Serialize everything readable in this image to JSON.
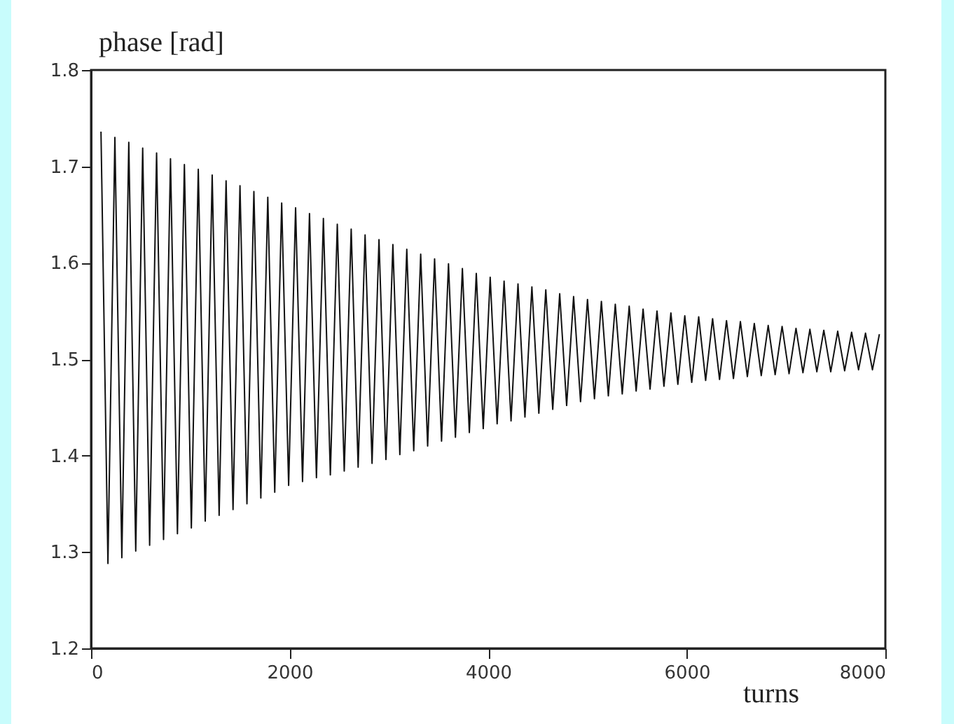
{
  "chart_data": {
    "type": "line",
    "xlabel": "turns",
    "ylabel": "phase [rad]",
    "xlim": [
      0,
      8000
    ],
    "ylim": [
      1.2,
      1.8
    ],
    "xticks": [
      0,
      2000,
      4000,
      6000,
      8000
    ],
    "yticks": [
      1.2,
      1.3,
      1.4,
      1.5,
      1.6,
      1.7,
      1.8
    ],
    "line_style": "solid",
    "x": [
      100,
      170,
      240,
      310,
      380,
      450,
      520,
      590,
      660,
      730,
      800,
      870,
      940,
      1010,
      1080,
      1150,
      1220,
      1290,
      1360,
      1430,
      1500,
      1570,
      1640,
      1710,
      1780,
      1850,
      1920,
      1990,
      2060,
      2130,
      2200,
      2270,
      2340,
      2410,
      2480,
      2550,
      2620,
      2690,
      2760,
      2830,
      2900,
      2970,
      3040,
      3110,
      3180,
      3250,
      3320,
      3390,
      3460,
      3530,
      3600,
      3670,
      3740,
      3810,
      3880,
      3950,
      4020,
      4090,
      4160,
      4230,
      4300,
      4370,
      4440,
      4510,
      4580,
      4650,
      4720,
      4790,
      4860,
      4930,
      5000,
      5070,
      5140,
      5210,
      5280,
      5350,
      5420,
      5490,
      5560,
      5630,
      5700,
      5770,
      5840,
      5910,
      5980,
      6050,
      6120,
      6190,
      6260,
      6330,
      6400,
      6470,
      6540,
      6610,
      6680,
      6750,
      6820,
      6890,
      6960,
      7030,
      7100,
      7170,
      7240,
      7310,
      7380,
      7450,
      7520,
      7590,
      7660,
      7730,
      7800,
      7870,
      7940
    ],
    "series": [
      {
        "color": "#111111",
        "values": [
          1.736,
          1.288,
          1.73,
          1.294,
          1.725,
          1.301,
          1.719,
          1.307,
          1.714,
          1.313,
          1.708,
          1.319,
          1.702,
          1.325,
          1.697,
          1.332,
          1.691,
          1.338,
          1.685,
          1.344,
          1.68,
          1.35,
          1.674,
          1.356,
          1.668,
          1.362,
          1.662,
          1.369,
          1.657,
          1.373,
          1.651,
          1.377,
          1.646,
          1.38,
          1.64,
          1.384,
          1.635,
          1.388,
          1.629,
          1.392,
          1.624,
          1.396,
          1.619,
          1.401,
          1.614,
          1.405,
          1.609,
          1.41,
          1.604,
          1.415,
          1.599,
          1.419,
          1.594,
          1.424,
          1.589,
          1.428,
          1.585,
          1.433,
          1.581,
          1.436,
          1.578,
          1.44,
          1.575,
          1.444,
          1.572,
          1.448,
          1.568,
          1.452,
          1.565,
          1.456,
          1.562,
          1.459,
          1.56,
          1.462,
          1.557,
          1.464,
          1.555,
          1.467,
          1.552,
          1.469,
          1.55,
          1.472,
          1.548,
          1.474,
          1.545,
          1.476,
          1.544,
          1.478,
          1.542,
          1.479,
          1.54,
          1.48,
          1.539,
          1.482,
          1.537,
          1.483,
          1.535,
          1.484,
          1.534,
          1.485,
          1.532,
          1.486,
          1.531,
          1.487,
          1.53,
          1.487,
          1.529,
          1.488,
          1.528,
          1.489,
          1.527,
          1.489,
          1.526
        ]
      }
    ]
  }
}
